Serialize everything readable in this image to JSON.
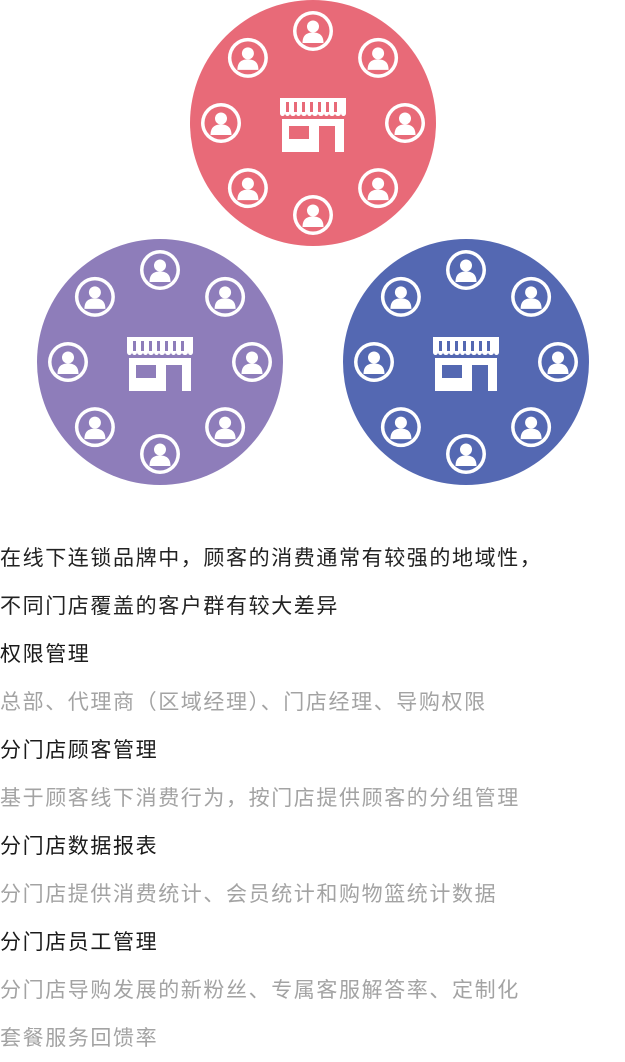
{
  "colors": {
    "circle_top": "#E86A78",
    "circle_left": "#8E7DBA",
    "circle_right": "#5468B2",
    "icon": "#FFFFFF",
    "heading_text": "#1A1A1A",
    "desc_text": "#A3A3A3"
  },
  "illustration": {
    "circles": [
      {
        "name": "top",
        "color_key": "circle_top",
        "center_icon": "store-icon",
        "ring_icon": "customer-avatar-icon",
        "ring_count": 8
      },
      {
        "name": "left",
        "color_key": "circle_left",
        "center_icon": "store-icon",
        "ring_icon": "customer-avatar-icon",
        "ring_count": 8
      },
      {
        "name": "right",
        "color_key": "circle_right",
        "center_icon": "store-icon",
        "ring_icon": "customer-avatar-icon",
        "ring_count": 8
      }
    ]
  },
  "intro": [
    "在线下连锁品牌中，顾客的消费通常有较强的地域性，",
    "不同门店覆盖的客户群有较大差异"
  ],
  "features": [
    {
      "title": "权限管理",
      "desc": [
        "总部、代理商（区域经理）、门店经理、导购权限"
      ]
    },
    {
      "title": "分门店顾客管理",
      "desc": [
        "基于顾客线下消费行为，按门店提供顾客的分组管理"
      ]
    },
    {
      "title": "分门店数据报表",
      "desc": [
        "分门店提供消费统计、会员统计和购物篮统计数据"
      ]
    },
    {
      "title": "分门店员工管理",
      "desc": [
        "分门店导购发展的新粉丝、专属客服解答率、定制化",
        "套餐服务回馈率"
      ]
    }
  ]
}
